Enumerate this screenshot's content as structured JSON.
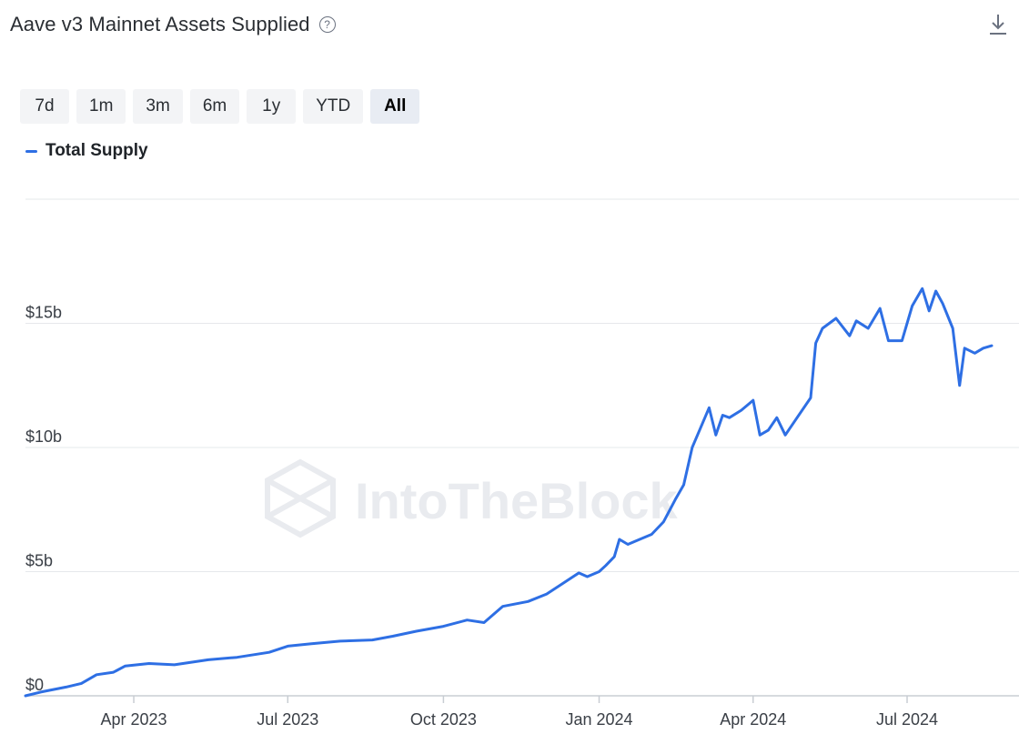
{
  "header": {
    "title": "Aave v3 Mainnet Assets Supplied",
    "help_icon": "question-circle-icon",
    "download_icon": "download-icon"
  },
  "range_buttons": [
    "7d",
    "1m",
    "3m",
    "6m",
    "1y",
    "YTD",
    "All"
  ],
  "active_range": "All",
  "watermark": "IntoTheBlock",
  "colors": {
    "line": "#2e6fe4",
    "grid": "#e6e8eb",
    "axis": "#c8cdd3"
  },
  "chart_data": {
    "type": "line",
    "title": "Aave v3 Mainnet Assets Supplied",
    "xlabel": "",
    "ylabel": "",
    "legend": {
      "position": "top-left",
      "entries": [
        "Total Supply"
      ]
    },
    "grid": true,
    "ylim": [
      0,
      20000000000
    ],
    "y_ticks": [
      {
        "value": 0,
        "label": "$0"
      },
      {
        "value": 5000000000,
        "label": "$5b"
      },
      {
        "value": 10000000000,
        "label": "$10b"
      },
      {
        "value": 15000000000,
        "label": "$15b"
      }
    ],
    "xlim": [
      "2023-01-27",
      "2024-08-20"
    ],
    "x_ticks": [
      {
        "date": "2023-04-01",
        "label": "Apr 2023"
      },
      {
        "date": "2023-07-01",
        "label": "Jul 2023"
      },
      {
        "date": "2023-10-01",
        "label": "Oct 2023"
      },
      {
        "date": "2024-01-01",
        "label": "Jan 2024"
      },
      {
        "date": "2024-04-01",
        "label": "Apr 2024"
      },
      {
        "date": "2024-07-01",
        "label": "Jul 2024"
      }
    ],
    "series": [
      {
        "name": "Total Supply",
        "points": [
          [
            "2023-01-27",
            0.0
          ],
          [
            "2023-02-05",
            0.15
          ],
          [
            "2023-02-20",
            0.35
          ],
          [
            "2023-03-01",
            0.5
          ],
          [
            "2023-03-10",
            0.85
          ],
          [
            "2023-03-20",
            0.95
          ],
          [
            "2023-03-27",
            1.2
          ],
          [
            "2023-04-10",
            1.3
          ],
          [
            "2023-04-25",
            1.25
          ],
          [
            "2023-05-15",
            1.45
          ],
          [
            "2023-06-01",
            1.55
          ],
          [
            "2023-06-20",
            1.75
          ],
          [
            "2023-07-01",
            2.0
          ],
          [
            "2023-07-15",
            2.1
          ],
          [
            "2023-08-01",
            2.2
          ],
          [
            "2023-08-20",
            2.25
          ],
          [
            "2023-09-01",
            2.4
          ],
          [
            "2023-09-15",
            2.6
          ],
          [
            "2023-10-01",
            2.8
          ],
          [
            "2023-10-15",
            3.05
          ],
          [
            "2023-10-25",
            2.95
          ],
          [
            "2023-11-05",
            3.6
          ],
          [
            "2023-11-20",
            3.8
          ],
          [
            "2023-12-01",
            4.1
          ],
          [
            "2023-12-10",
            4.5
          ],
          [
            "2023-12-20",
            4.95
          ],
          [
            "2023-12-25",
            4.8
          ],
          [
            "2024-01-01",
            5.0
          ],
          [
            "2024-01-05",
            5.25
          ],
          [
            "2024-01-10",
            5.6
          ],
          [
            "2024-01-13",
            6.3
          ],
          [
            "2024-01-18",
            6.1
          ],
          [
            "2024-01-25",
            6.3
          ],
          [
            "2024-02-01",
            6.5
          ],
          [
            "2024-02-08",
            7.0
          ],
          [
            "2024-02-15",
            7.9
          ],
          [
            "2024-02-20",
            8.5
          ],
          [
            "2024-02-25",
            10.0
          ],
          [
            "2024-03-01",
            10.8
          ],
          [
            "2024-03-06",
            11.6
          ],
          [
            "2024-03-10",
            10.5
          ],
          [
            "2024-03-14",
            11.3
          ],
          [
            "2024-03-18",
            11.2
          ],
          [
            "2024-03-25",
            11.5
          ],
          [
            "2024-04-01",
            11.9
          ],
          [
            "2024-04-05",
            10.5
          ],
          [
            "2024-04-10",
            10.7
          ],
          [
            "2024-04-15",
            11.2
          ],
          [
            "2024-04-20",
            10.5
          ],
          [
            "2024-04-27",
            11.2
          ],
          [
            "2024-05-05",
            12.0
          ],
          [
            "2024-05-08",
            14.2
          ],
          [
            "2024-05-12",
            14.8
          ],
          [
            "2024-05-20",
            15.2
          ],
          [
            "2024-05-28",
            14.5
          ],
          [
            "2024-06-01",
            15.1
          ],
          [
            "2024-06-08",
            14.8
          ],
          [
            "2024-06-15",
            15.6
          ],
          [
            "2024-06-20",
            14.3
          ],
          [
            "2024-06-28",
            14.3
          ],
          [
            "2024-07-04",
            15.7
          ],
          [
            "2024-07-10",
            16.4
          ],
          [
            "2024-07-14",
            15.5
          ],
          [
            "2024-07-18",
            16.3
          ],
          [
            "2024-07-22",
            15.8
          ],
          [
            "2024-07-28",
            14.8
          ],
          [
            "2024-08-01",
            12.5
          ],
          [
            "2024-08-04",
            14.0
          ],
          [
            "2024-08-10",
            13.8
          ],
          [
            "2024-08-15",
            14.0
          ],
          [
            "2024-08-20",
            14.1
          ]
        ]
      }
    ]
  }
}
